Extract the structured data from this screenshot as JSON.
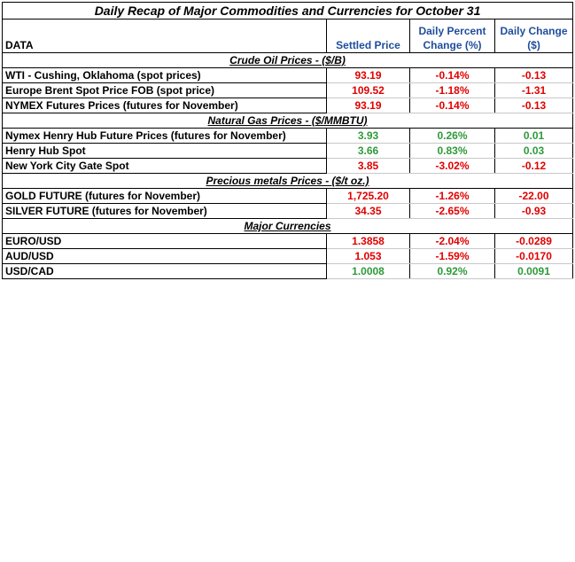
{
  "title": "Daily Recap of Major Commodities and Currencies for October 31",
  "header": {
    "label": "DATA",
    "settled": "Settled Price",
    "pct": "Daily Percent Change (%)",
    "change": "Daily Change ($)"
  },
  "sections": [
    {
      "title": "Crude Oil Prices - ($/B)",
      "rows": [
        {
          "name": "WTI - Cushing, Oklahoma (spot prices)",
          "settled": "93.19",
          "pct": "-0.14%",
          "change": "-0.13",
          "color": "#e00000"
        },
        {
          "name": "Europe Brent Spot Price FOB (spot price)",
          "settled": "109.52",
          "pct": "-1.18%",
          "change": "-1.31",
          "color": "#e00000"
        },
        {
          "name": "NYMEX Futures Prices (futures for November)",
          "settled": "93.19",
          "pct": "-0.14%",
          "change": "-0.13",
          "color": "#e00000"
        }
      ]
    },
    {
      "title": "Natural Gas Prices -  ($/MMBTU)",
      "rows": [
        {
          "name": "Nymex Henry Hub Future Prices (futures for November)",
          "settled": "3.93",
          "pct": "0.26%",
          "change": "0.01",
          "color": "#2e9a3a"
        },
        {
          "name": "Henry Hub Spot",
          "settled": "3.66",
          "pct": "0.83%",
          "change": "0.03",
          "color": "#2e9a3a"
        },
        {
          "name": "New York City Gate Spot",
          "settled": "3.85",
          "pct": "-3.02%",
          "change": "-0.12",
          "color": "#e00000"
        }
      ]
    },
    {
      "title": "Precious metals Prices -  ($/t oz.)",
      "rows": [
        {
          "name": "GOLD FUTURE (futures for November)",
          "settled": "1,725.20",
          "pct": "-1.26%",
          "change": "-22.00",
          "color": "#e00000"
        },
        {
          "name": "SILVER FUTURE (futures for November)",
          "settled": "34.35",
          "pct": "-2.65%",
          "change": "-0.93",
          "color": "#e00000"
        }
      ]
    },
    {
      "title": "Major Currencies",
      "rows": [
        {
          "name": "EURO/USD",
          "settled": "1.3858",
          "pct": "-2.04%",
          "change": "-0.0289",
          "color": "#e00000"
        },
        {
          "name": "AUD/USD",
          "settled": "1.053",
          "pct": "-1.59%",
          "change": "-0.0170",
          "color": "#e00000"
        },
        {
          "name": "USD/CAD",
          "settled": "1.0008",
          "pct": "0.92%",
          "change": "0.0091",
          "color": "#2e9a3a"
        }
      ]
    }
  ]
}
